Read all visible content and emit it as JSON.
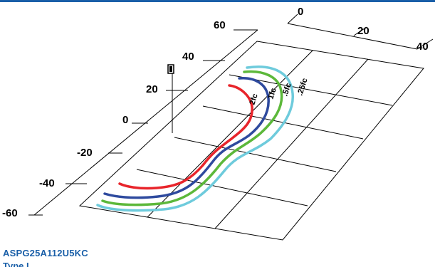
{
  "diagram": {
    "x_axis_ticks": [
      "60",
      "40",
      "20",
      "0",
      "-20",
      "-40",
      "-60"
    ],
    "y_axis_ticks": [
      "0",
      "20",
      "40"
    ],
    "contours": [
      {
        "label": "2fc",
        "color": "#e8252b"
      },
      {
        "label": "1fc",
        "color": "#2e4a9e"
      },
      {
        "label": ".5fc",
        "color": "#5cb83a"
      },
      {
        "label": ".25fc",
        "color": "#6ecbdc"
      }
    ]
  },
  "model": {
    "name": "ASPG25A112U5KC",
    "subtitle": "Type I"
  }
}
